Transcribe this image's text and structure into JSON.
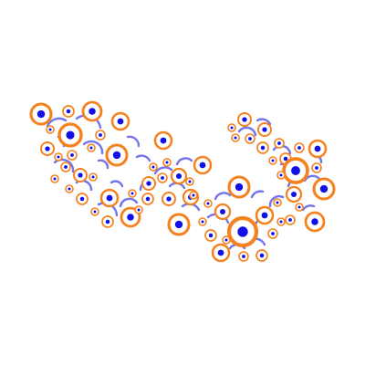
{
  "colors": {
    "background": "#ffffff",
    "ring": "#f5821f",
    "dot": "#1010e6",
    "connector": "#5a5ae8"
  },
  "motif": {
    "element": "orange-ring-with-blue-dot",
    "connector": "blue-arc"
  }
}
